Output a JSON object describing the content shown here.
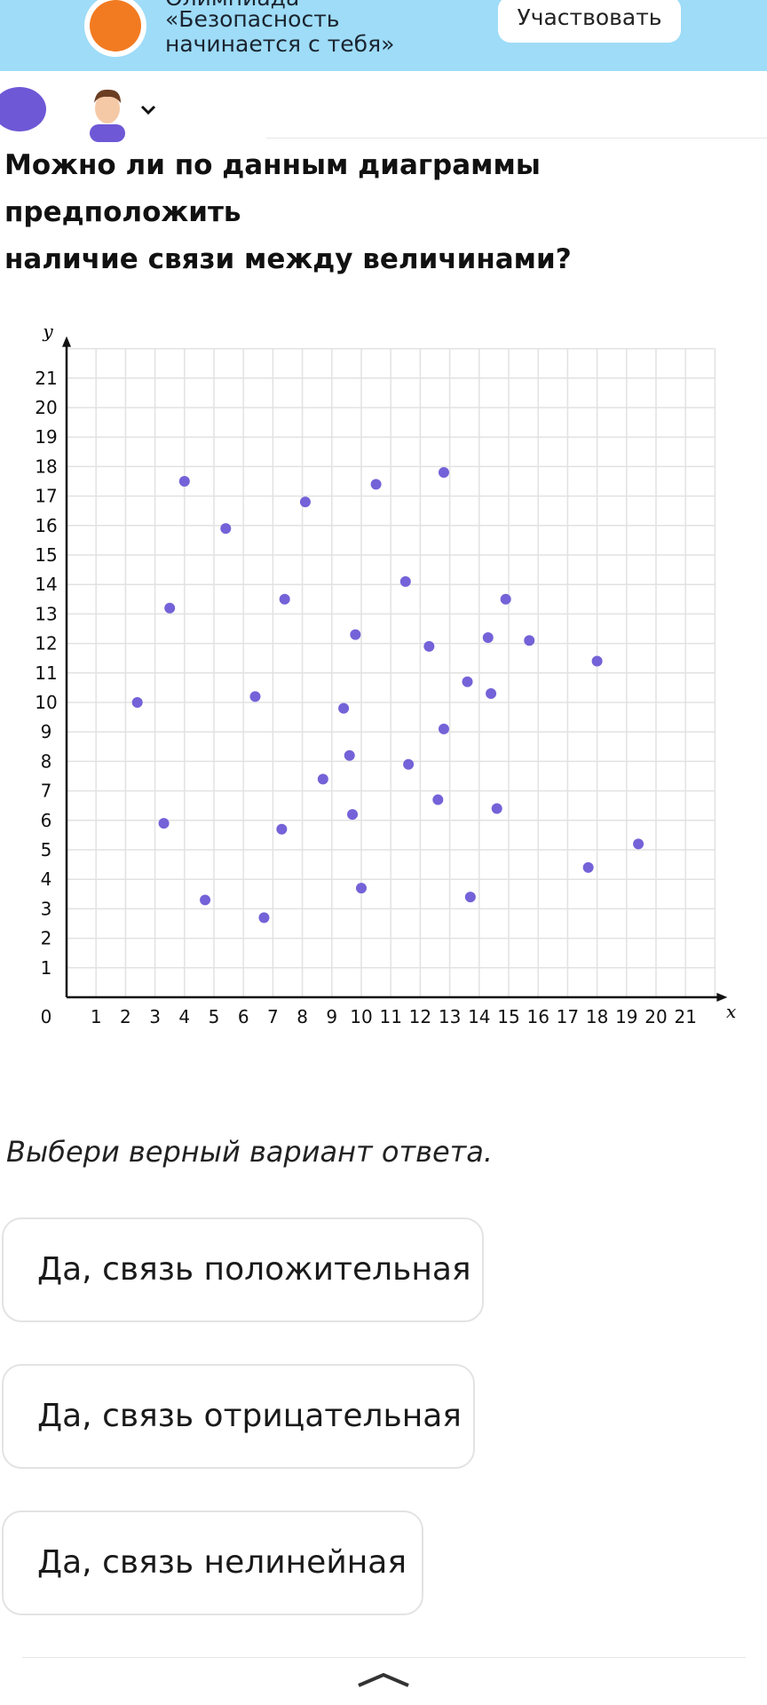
{
  "banner": {
    "top_line": "Олимпиада",
    "title_lines": [
      "«Безопасность",
      "начинается с тебя»"
    ],
    "button": "Участвовать"
  },
  "question_lines": [
    "Можно ли по данным диаграммы предположить",
    "наличие связи между величинами?"
  ],
  "chart_data": {
    "type": "scatter",
    "x_label": "x",
    "y_label": "y",
    "color": "#7462d8",
    "grid": true,
    "xlim": [
      0,
      22
    ],
    "ylim": [
      0,
      22
    ],
    "xticks": [
      0,
      1,
      2,
      3,
      4,
      5,
      6,
      7,
      8,
      9,
      10,
      11,
      12,
      13,
      14,
      15,
      16,
      17,
      18,
      19,
      20,
      21
    ],
    "yticks": [
      1,
      2,
      3,
      4,
      5,
      6,
      7,
      8,
      9,
      10,
      11,
      12,
      13,
      14,
      15,
      16,
      17,
      18,
      19,
      20,
      21
    ],
    "x": [
      4.0,
      5.4,
      3.5,
      2.4,
      3.3,
      4.7,
      6.7,
      7.3,
      6.4,
      7.4,
      8.1,
      10.5,
      12.8,
      11.5,
      9.8,
      9.4,
      9.6,
      8.7,
      9.7,
      10.0,
      11.6,
      12.3,
      12.8,
      13.6,
      12.6,
      13.7,
      14.3,
      14.9,
      14.4,
      14.6,
      15.7,
      18.0,
      17.7,
      19.4
    ],
    "y": [
      17.5,
      15.9,
      13.2,
      10.0,
      5.9,
      3.3,
      2.7,
      5.7,
      10.2,
      13.5,
      16.8,
      17.4,
      17.8,
      14.1,
      12.3,
      9.8,
      8.2,
      7.4,
      6.2,
      3.7,
      7.9,
      11.9,
      9.1,
      10.7,
      6.7,
      3.4,
      12.2,
      13.5,
      10.3,
      6.4,
      12.1,
      11.4,
      4.4,
      5.2
    ]
  },
  "instruction": "Выбери верный вариант ответа.",
  "options": [
    "Да, связь положительная",
    "Да, связь отрицательная",
    "Да, связь нелинейная"
  ]
}
